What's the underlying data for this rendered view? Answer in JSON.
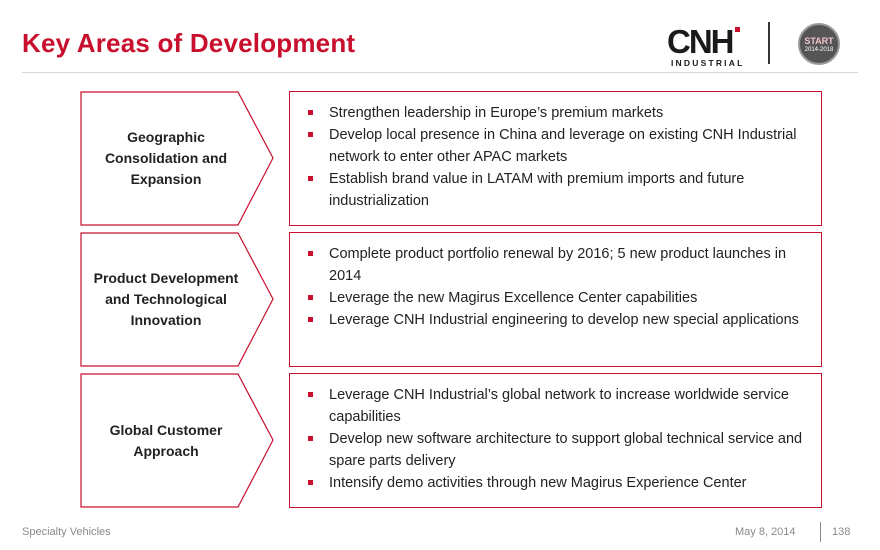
{
  "header": {
    "title": "Key Areas of Development",
    "logo": {
      "mark": "CNH",
      "subtitle": "INDUSTRIAL"
    },
    "badge": {
      "line1": "START",
      "line2": "2014-2018"
    }
  },
  "sections": [
    {
      "heading": "Geographic Consolidation and Expansion",
      "bullets": [
        "Strengthen leadership in Europe’s premium markets",
        "Develop local presence in China and leverage on existing CNH Industrial network to enter other APAC markets",
        "Establish brand value in LATAM with premium imports and future industrialization"
      ]
    },
    {
      "heading": "Product Development and Technological Innovation",
      "bullets": [
        "Complete product portfolio renewal by 2016; 5 new product launches in 2014",
        "Leverage the new Magirus Excellence Center  capabilities",
        "Leverage CNH Industrial engineering to develop new special applications"
      ]
    },
    {
      "heading": "Global Customer Approach",
      "bullets": [
        "Leverage CNH Industrial’s global network to increase worldwide service capabilities",
        "Develop new software architecture to support global technical service and spare parts delivery",
        "Intensify demo activities through new Magirus Experience Center"
      ]
    }
  ],
  "footer": {
    "left": "Specialty Vehicles",
    "date": "May 8, 2014",
    "page": "138"
  },
  "colors": {
    "accent": "#c8102e",
    "text": "#222222",
    "muted": "#8a8a8a"
  }
}
